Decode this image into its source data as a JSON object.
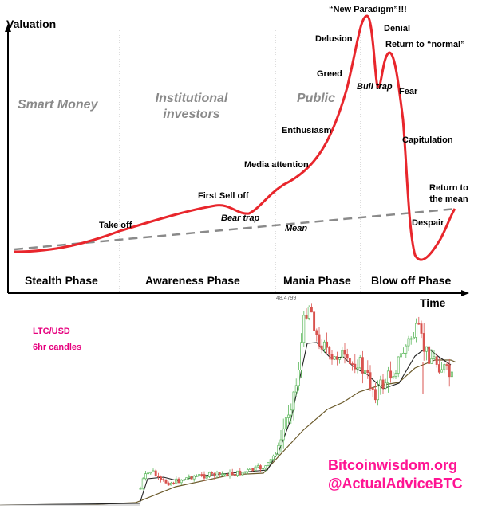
{
  "top_chart": {
    "y_axis_label": "Valuation",
    "x_axis_label": "Time",
    "groups": [
      "Smart Money",
      "Institutional investors",
      "Public"
    ],
    "groups_lines": {
      "institutional_1": "Institutional",
      "institutional_2": "investors"
    },
    "phases": [
      "Stealth Phase",
      "Awareness Phase",
      "Mania Phase",
      "Blow off Phase"
    ],
    "annotations": {
      "take_off": "Take off",
      "first_sell_off": "First Sell off",
      "bear_trap": "Bear trap",
      "media_attention": "Media attention",
      "enthusiasm": "Enthusiasm",
      "greed": "Greed",
      "delusion": "Delusion",
      "new_paradigm": "“New Paradigm”!!!",
      "denial": "Denial",
      "bull_trap": "Bull trap",
      "return_to_normal": "Return to “normal”",
      "fear": "Fear",
      "capitulation": "Capitulation",
      "return_to_mean_1": "Return to",
      "return_to_mean_2": "the mean",
      "despair": "Despair",
      "mean": "Mean"
    },
    "colors": {
      "curve": "#e8262c",
      "mean": "#8a8a8a",
      "group_text": "#8a8a8a"
    }
  },
  "bottom_chart": {
    "pair_label": "LTC/USD",
    "candle_label": "6hr candles",
    "peak_price_label": "48.4799",
    "watermark_site": "Bitcoinwisdom.org",
    "watermark_handle": "@ActualAdviceBTC",
    "colors": {
      "up": "#5cb85c",
      "down": "#d9534f",
      "ma_fast": "#222222",
      "ma_slow": "#6b5a2a",
      "annotation": "#e6007e",
      "watermark": "#ff1493"
    }
  },
  "chart_data": [
    {
      "type": "line",
      "title": "",
      "xlabel": "Time",
      "ylabel": "Valuation",
      "series": [],
      "phases": [
        "Stealth Phase",
        "Awareness Phase",
        "Mania Phase",
        "Blow off Phase"
      ]
    },
    {
      "type": "line",
      "title": "LTC/USD",
      "subtitle": "6hr candles",
      "peak_label": 48.4799,
      "series": []
    }
  ]
}
